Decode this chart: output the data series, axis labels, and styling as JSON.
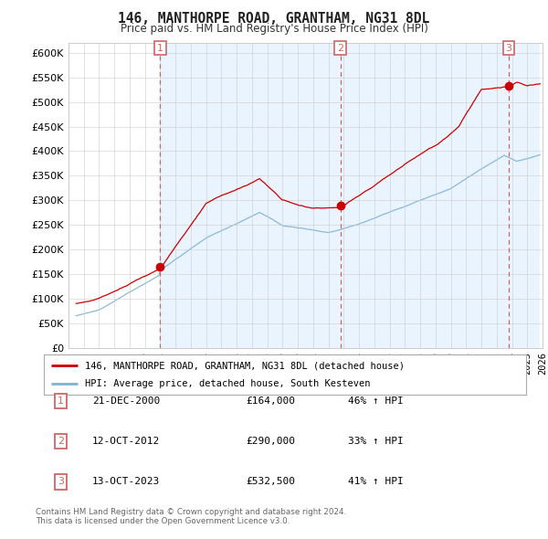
{
  "title": "146, MANTHORPE ROAD, GRANTHAM, NG31 8DL",
  "subtitle": "Price paid vs. HM Land Registry's House Price Index (HPI)",
  "ylim": [
    0,
    620000
  ],
  "yticks": [
    0,
    50000,
    100000,
    150000,
    200000,
    250000,
    300000,
    350000,
    400000,
    450000,
    500000,
    550000,
    600000
  ],
  "xlim_start": 1995.5,
  "xlim_end": 2025.8,
  "sale_dates": [
    2001.0,
    2012.79,
    2023.79
  ],
  "sale_prices": [
    164000,
    290000,
    532500
  ],
  "sale_labels": [
    "1",
    "2",
    "3"
  ],
  "legend_line1": "146, MANTHORPE ROAD, GRANTHAM, NG31 8DL (detached house)",
  "legend_line2": "HPI: Average price, detached house, South Kesteven",
  "table_data": [
    [
      "1",
      "21-DEC-2000",
      "£164,000",
      "46% ↑ HPI"
    ],
    [
      "2",
      "12-OCT-2012",
      "£290,000",
      "33% ↑ HPI"
    ],
    [
      "3",
      "13-OCT-2023",
      "£532,500",
      "41% ↑ HPI"
    ]
  ],
  "footer": "Contains HM Land Registry data © Crown copyright and database right 2024.\nThis data is licensed under the Open Government Licence v3.0.",
  "line_color_red": "#cc0000",
  "line_color_blue": "#7fb3d3",
  "shade_color": "#ddeeff",
  "dashed_color": "#cc6666",
  "background_color": "#ffffff",
  "grid_color": "#cccccc",
  "plot_bg": "#f0f5fc"
}
